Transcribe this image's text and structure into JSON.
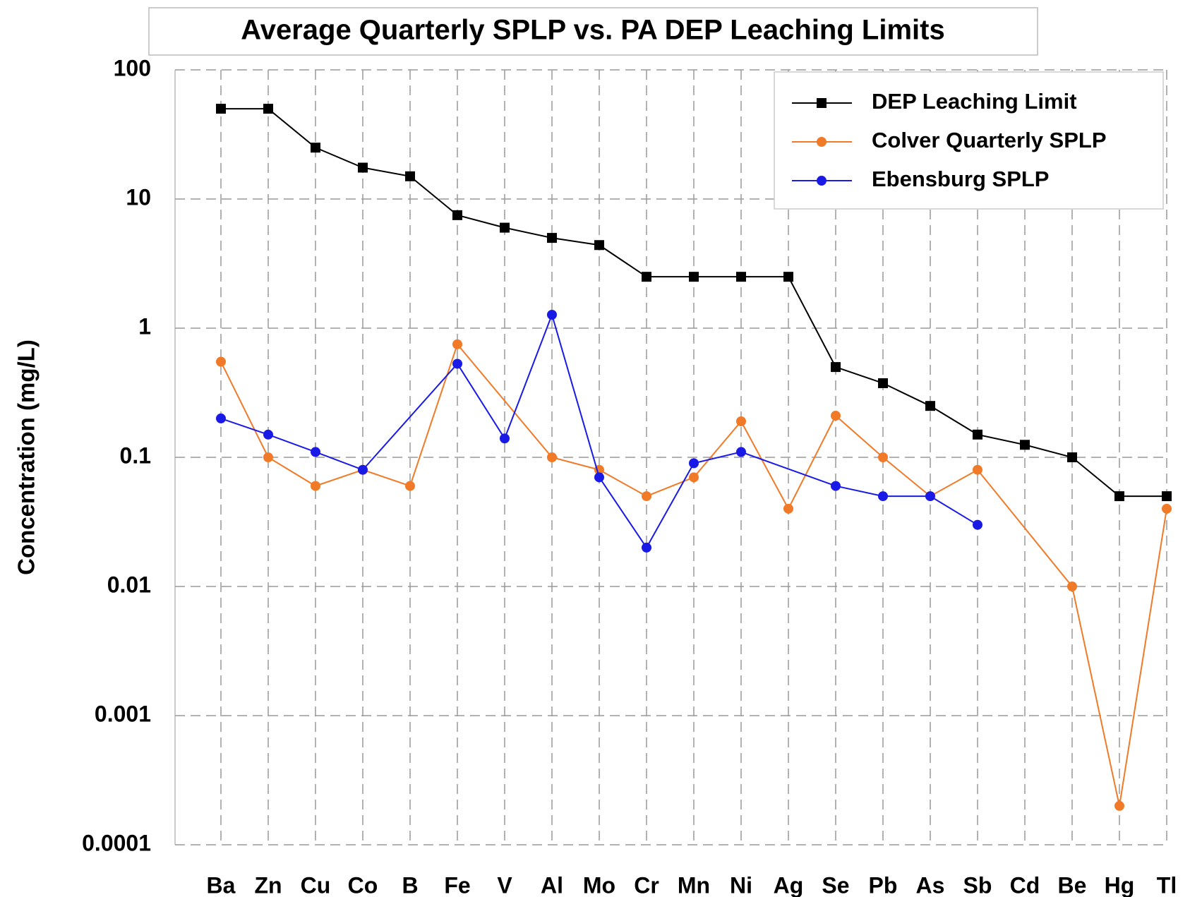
{
  "chart_data": {
    "type": "line",
    "title": "Average Quarterly SPLP vs. PA DEP Leaching Limits",
    "y_label": "Concentration (mg/L)",
    "categories": [
      "Ba",
      "Zn",
      "Cu",
      "Co",
      "B",
      "Fe",
      "V",
      "Al",
      "Mo",
      "Cr",
      "Mn",
      "Ni",
      "Ag",
      "Se",
      "Pb",
      "As",
      "Sb",
      "Cd",
      "Be",
      "Hg",
      "Tl"
    ],
    "log_scale": true,
    "grid": true,
    "span_gaps": true,
    "legend": "top-right",
    "ylim": [
      0.0001,
      100
    ],
    "yticks": [
      0.0001,
      0.001,
      0.01,
      0.1,
      1,
      10,
      100
    ],
    "series": [
      {
        "name": "DEP Leaching Limit",
        "color": "#000000",
        "marker": "square",
        "values": [
          50,
          50,
          25,
          17.5,
          15,
          7.5,
          6,
          5,
          4.4,
          2.5,
          2.5,
          2.5,
          2.5,
          0.5,
          0.375,
          0.25,
          0.15,
          0.125,
          0.1,
          0.05,
          0.05
        ]
      },
      {
        "name": "Colver Quarterly SPLP",
        "color": "#f07a28",
        "marker": "circle",
        "values": [
          0.55,
          0.1,
          0.06,
          0.08,
          0.06,
          0.75,
          null,
          0.1,
          0.08,
          0.05,
          0.07,
          0.19,
          0.04,
          0.21,
          0.1,
          0.05,
          0.08,
          null,
          0.01,
          0.0002,
          0.04
        ]
      },
      {
        "name": "Ebensburg SPLP",
        "color": "#1a1ae6",
        "marker": "circle",
        "values": [
          0.2,
          0.15,
          0.11,
          0.08,
          null,
          0.53,
          0.14,
          1.27,
          0.07,
          0.02,
          0.09,
          0.11,
          null,
          0.06,
          0.05,
          0.05,
          0.03,
          null,
          null,
          null,
          null
        ]
      }
    ]
  }
}
